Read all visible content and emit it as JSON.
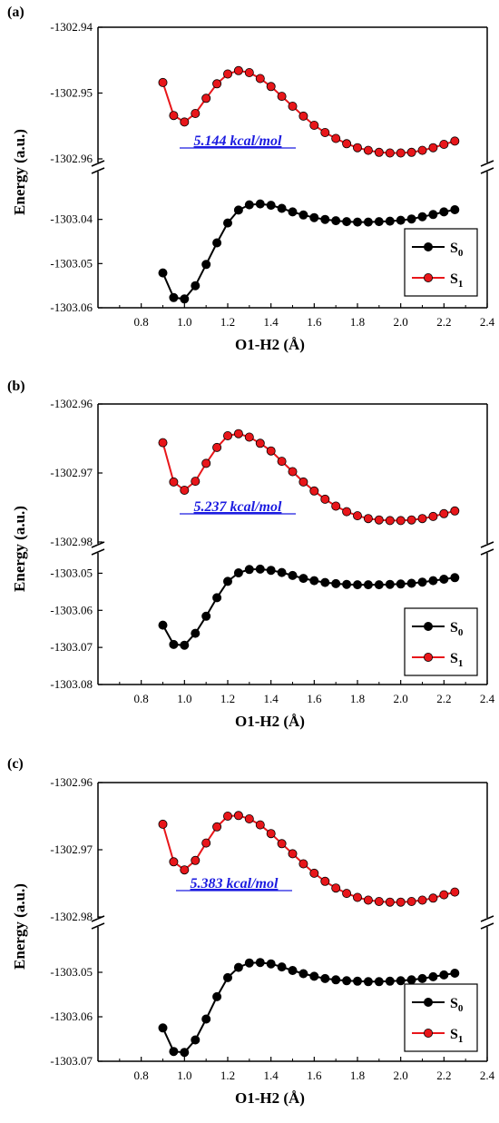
{
  "figure": {
    "colors": {
      "s0": "#000000",
      "s1": "#e8161a",
      "annotation": "#1c1ce0",
      "axis": "#000000"
    }
  },
  "chart_data": [
    {
      "type": "line",
      "panel_label": "(a)",
      "xlabel": "O1-H2 (Å)",
      "ylabel": "Energy (a.u.)",
      "xlim": [
        0.6,
        2.4
      ],
      "x_ticks": [
        "0.8",
        "1.0",
        "1.2",
        "1.4",
        "1.6",
        "1.8",
        "2.0",
        "2.2",
        "2.4"
      ],
      "broken_y_axis": true,
      "upper_ylim": [
        -1302.96,
        -1302.94
      ],
      "upper_ticks": [
        "-1302.94",
        "-1302.95",
        "-1302.96"
      ],
      "lower_ylim": [
        -1303.06,
        -1303.03
      ],
      "lower_ticks": [
        "-1303.04",
        "-1303.05",
        "-1303.06"
      ],
      "annotation": "5.144 kcal/mol",
      "x": [
        0.9,
        0.95,
        1.0,
        1.05,
        1.1,
        1.15,
        1.2,
        1.25,
        1.3,
        1.35,
        1.4,
        1.45,
        1.5,
        1.55,
        1.6,
        1.65,
        1.7,
        1.75,
        1.8,
        1.85,
        1.9,
        1.95,
        2.0,
        2.05,
        2.1,
        2.15,
        2.2,
        2.25
      ],
      "series": [
        {
          "name": "S0",
          "subscript": "0",
          "base": "S",
          "color_key": "s0",
          "values": [
            -1303.0521,
            -1303.0577,
            -1303.058,
            -1303.055,
            -1303.0502,
            -1303.0453,
            -1303.0408,
            -1303.0379,
            -1303.0367,
            -1303.0365,
            -1303.0368,
            -1303.0375,
            -1303.0383,
            -1303.039,
            -1303.0396,
            -1303.04,
            -1303.0403,
            -1303.0405,
            -1303.0406,
            -1303.0406,
            -1303.0405,
            -1303.0404,
            -1303.0402,
            -1303.0399,
            -1303.0394,
            -1303.0389,
            -1303.0383,
            -1303.0378
          ]
        },
        {
          "name": "S1",
          "subscript": "1",
          "base": "S",
          "color_key": "s1",
          "values": [
            -1302.9484,
            -1302.9534,
            -1302.9544,
            -1302.9531,
            -1302.9508,
            -1302.9486,
            -1302.9471,
            -1302.9466,
            -1302.9469,
            -1302.9478,
            -1302.949,
            -1302.9505,
            -1302.952,
            -1302.9535,
            -1302.9549,
            -1302.956,
            -1302.9569,
            -1302.9577,
            -1302.9583,
            -1302.9587,
            -1302.959,
            -1302.9591,
            -1302.9591,
            -1302.959,
            -1302.9587,
            -1302.9583,
            -1302.9578,
            -1302.9573
          ]
        }
      ]
    },
    {
      "type": "line",
      "panel_label": "(b)",
      "xlabel": "O1-H2 (Å)",
      "ylabel": "Energy (a.u.)",
      "xlim": [
        0.6,
        2.4
      ],
      "x_ticks": [
        "0.8",
        "1.0",
        "1.2",
        "1.4",
        "1.6",
        "1.8",
        "2.0",
        "2.2",
        "2.4"
      ],
      "broken_y_axis": true,
      "upper_ylim": [
        -1302.98,
        -1302.96
      ],
      "upper_ticks": [
        "-1302.96",
        "-1302.97",
        "-1302.98"
      ],
      "lower_ylim": [
        -1303.08,
        -1303.045
      ],
      "lower_ticks": [
        "-1303.05",
        "-1303.06",
        "-1303.07",
        "-1303.08"
      ],
      "annotation": "5.237 kcal/mol",
      "x": [
        0.9,
        0.95,
        1.0,
        1.05,
        1.1,
        1.15,
        1.2,
        1.25,
        1.3,
        1.35,
        1.4,
        1.45,
        1.5,
        1.55,
        1.6,
        1.65,
        1.7,
        1.75,
        1.8,
        1.85,
        1.9,
        1.95,
        2.0,
        2.05,
        2.1,
        2.15,
        2.2,
        2.25
      ],
      "series": [
        {
          "name": "S0",
          "subscript": "0",
          "base": "S",
          "color_key": "s0",
          "values": [
            -1303.064,
            -1303.0692,
            -1303.0694,
            -1303.0662,
            -1303.0616,
            -1303.0566,
            -1303.0522,
            -1303.0499,
            -1303.049,
            -1303.0489,
            -1303.0492,
            -1303.0498,
            -1303.0506,
            -1303.0514,
            -1303.052,
            -1303.0525,
            -1303.0528,
            -1303.053,
            -1303.0531,
            -1303.0531,
            -1303.0531,
            -1303.053,
            -1303.0529,
            -1303.0527,
            -1303.0524,
            -1303.052,
            -1303.0516,
            -1303.0512
          ]
        },
        {
          "name": "S1",
          "subscript": "1",
          "base": "S",
          "color_key": "s1",
          "values": [
            -1302.9656,
            -1302.9713,
            -1302.9725,
            -1302.9712,
            -1302.9686,
            -1302.9663,
            -1302.9646,
            -1302.9643,
            -1302.9648,
            -1302.9657,
            -1302.9668,
            -1302.9683,
            -1302.9698,
            -1302.9713,
            -1302.9726,
            -1302.9738,
            -1302.9748,
            -1302.9756,
            -1302.9762,
            -1302.9766,
            -1302.9768,
            -1302.9769,
            -1302.9769,
            -1302.9768,
            -1302.9766,
            -1302.9763,
            -1302.9759,
            -1302.9755
          ]
        }
      ]
    },
    {
      "type": "line",
      "panel_label": "(c)",
      "xlabel": "O1-H2 (Å)",
      "ylabel": "Energy (a.u.)",
      "xlim": [
        0.6,
        2.4
      ],
      "x_ticks": [
        "0.8",
        "1.0",
        "1.2",
        "1.4",
        "1.6",
        "1.8",
        "2.0",
        "2.2",
        "2.4"
      ],
      "broken_y_axis": true,
      "upper_ylim": [
        -1302.98,
        -1302.96
      ],
      "upper_ticks": [
        "-1302.96",
        "-1302.97",
        "-1302.98"
      ],
      "lower_ylim": [
        -1303.07,
        -1303.04
      ],
      "lower_ticks": [
        "-1303.05",
        "-1303.06",
        "-1303.07"
      ],
      "annotation": "5.383 kcal/mol",
      "x": [
        0.9,
        0.95,
        1.0,
        1.05,
        1.1,
        1.15,
        1.2,
        1.25,
        1.3,
        1.35,
        1.4,
        1.45,
        1.5,
        1.55,
        1.6,
        1.65,
        1.7,
        1.75,
        1.8,
        1.85,
        1.9,
        1.95,
        2.0,
        2.05,
        2.1,
        2.15,
        2.2,
        2.25
      ],
      "series": [
        {
          "name": "S0",
          "subscript": "0",
          "base": "S",
          "color_key": "s0",
          "values": [
            -1303.0625,
            -1303.0678,
            -1303.068,
            -1303.0652,
            -1303.0605,
            -1303.0555,
            -1303.0512,
            -1303.0489,
            -1303.0479,
            -1303.0478,
            -1303.0481,
            -1303.0488,
            -1303.0496,
            -1303.0503,
            -1303.0509,
            -1303.0514,
            -1303.0517,
            -1303.0519,
            -1303.052,
            -1303.0521,
            -1303.0521,
            -1303.052,
            -1303.0519,
            -1303.0517,
            -1303.0514,
            -1303.051,
            -1303.0506,
            -1303.0502
          ]
        },
        {
          "name": "S1",
          "subscript": "1",
          "base": "S",
          "color_key": "s1",
          "values": [
            -1302.9662,
            -1302.9718,
            -1302.973,
            -1302.9716,
            -1302.969,
            -1302.9666,
            -1302.965,
            -1302.9649,
            -1302.9654,
            -1302.9663,
            -1302.9676,
            -1302.9691,
            -1302.9706,
            -1302.9721,
            -1302.9735,
            -1302.9747,
            -1302.9757,
            -1302.9765,
            -1302.9771,
            -1302.9775,
            -1302.9777,
            -1302.9778,
            -1302.9778,
            -1302.9777,
            -1302.9775,
            -1302.9772,
            -1302.9767,
            -1302.9763
          ]
        }
      ]
    }
  ]
}
